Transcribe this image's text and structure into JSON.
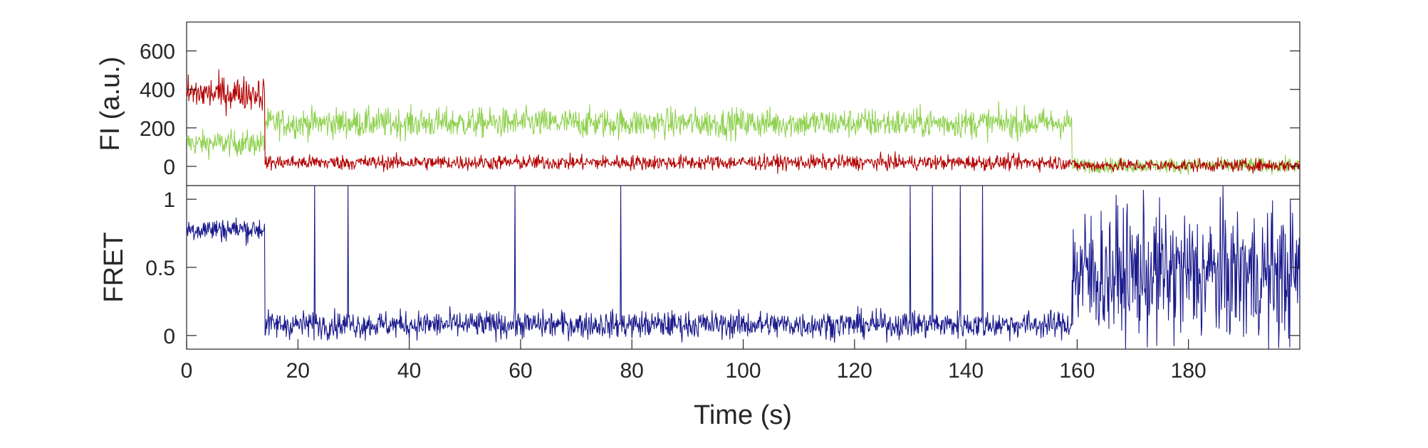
{
  "chart_data": [
    {
      "type": "line",
      "panel": "top",
      "ylabel": "FI (a.u.)",
      "xlabel": "",
      "xlim": [
        0,
        200
      ],
      "ylim": [
        -100,
        750
      ],
      "yticks": [
        0,
        200,
        400,
        600
      ],
      "ytick_labels": [
        "0",
        "200",
        "400",
        "600"
      ],
      "grid": false,
      "series": [
        {
          "color": "#8fd14f",
          "segments": [
            {
              "x": [
                0,
                14
              ],
              "mean": 120,
              "noise": 60
            },
            {
              "x": [
                14,
                159
              ],
              "mean": 225,
              "noise": 70
            },
            {
              "x": [
                159,
                200
              ],
              "mean": 5,
              "noise": 35
            }
          ]
        },
        {
          "color": "#b30000",
          "segments": [
            {
              "x": [
                0,
                14
              ],
              "mean": 380,
              "noise": 80
            },
            {
              "x": [
                14,
                159
              ],
              "mean": 20,
              "noise": 35
            },
            {
              "x": [
                159,
                200
              ],
              "mean": 5,
              "noise": 30
            }
          ]
        }
      ]
    },
    {
      "type": "line",
      "panel": "bottom",
      "ylabel": "FRET",
      "xlabel": "Time (s)",
      "xlim": [
        0,
        200
      ],
      "ylim": [
        -0.1,
        1.1
      ],
      "xticks": [
        0,
        20,
        40,
        60,
        80,
        100,
        120,
        140,
        160,
        180
      ],
      "xtick_labels": [
        "0",
        "20",
        "40",
        "60",
        "80",
        "100",
        "120",
        "140",
        "160",
        "180"
      ],
      "yticks": [
        0,
        0.5,
        1
      ],
      "ytick_labels": [
        "0",
        "0.5",
        "1"
      ],
      "grid": false,
      "series": [
        {
          "color": "#1a1a8c",
          "segments": [
            {
              "x": [
                0,
                14
              ],
              "mean": 0.78,
              "noise": 0.08
            },
            {
              "x": [
                14,
                159
              ],
              "mean": 0.08,
              "noise": 0.09
            },
            {
              "x": [
                159,
                200
              ],
              "mean": 0.45,
              "noise": 0.45
            }
          ],
          "spikes_x": [
            23,
            29,
            59,
            78,
            130,
            134,
            139,
            143
          ]
        }
      ]
    }
  ]
}
